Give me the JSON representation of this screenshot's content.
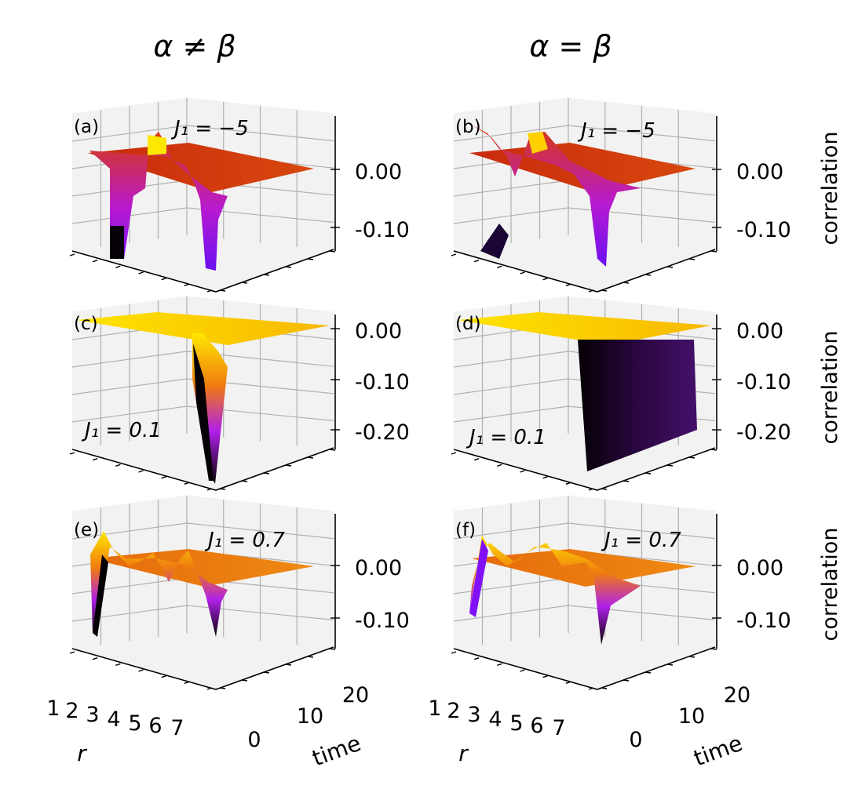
{
  "column_titles": [
    "α ≠ β",
    "α = β"
  ],
  "chart_data": [
    {
      "panel": "(a)",
      "type": "surface",
      "column": "α ≠ β",
      "annotation": "J₁ = −5",
      "zlabel": "",
      "zticks": [
        "0.00",
        "-0.10"
      ],
      "r": [
        1,
        2,
        3,
        4,
        5,
        6,
        7
      ],
      "time_range": [
        0,
        20
      ],
      "dips_at_r": [
        3,
        6
      ],
      "peak_at_r": 4.6,
      "min": -0.14,
      "max": 0.03
    },
    {
      "panel": "(b)",
      "type": "surface",
      "column": "α = β",
      "annotation": "J₁ = −5",
      "zlabel": "correlation",
      "zticks": [
        "0.00",
        "-0.10"
      ],
      "r": [
        1,
        2,
        3,
        4,
        5,
        6,
        7
      ],
      "time_range": [
        0,
        20
      ],
      "dips_at_r": [
        3,
        6
      ],
      "peak_at_r": 4.5,
      "min": -0.14,
      "max": 0.04
    },
    {
      "panel": "(c)",
      "type": "surface",
      "column": "α ≠ β",
      "annotation": "J₁ = 0.1",
      "zlabel": "",
      "zticks": [
        "0.00",
        "-0.10",
        "-0.20"
      ],
      "r": [
        1,
        2,
        3,
        4,
        5,
        6,
        7
      ],
      "time_range": [
        0,
        20
      ],
      "dips_at_r": [
        5
      ],
      "min": -0.28,
      "max": 0.01
    },
    {
      "panel": "(d)",
      "type": "surface",
      "column": "α = β",
      "annotation": "J₁ = 0.1",
      "zlabel": "correlation",
      "zticks": [
        "0.00",
        "-0.10",
        "-0.20"
      ],
      "r": [
        1,
        2,
        3,
        4,
        5,
        6,
        7
      ],
      "time_range": [
        0,
        20
      ],
      "dips_at_r": [
        5
      ],
      "min": -0.25,
      "max": 0.01
    },
    {
      "panel": "(e)",
      "type": "surface",
      "column": "α ≠ β",
      "annotation": "J₁ = 0.7",
      "zlabel": "",
      "zticks": [
        "0.00",
        "-0.10"
      ],
      "r": [
        1,
        2,
        3,
        4,
        5,
        6,
        7
      ],
      "time_range": [
        0,
        20
      ],
      "xlabel": "r",
      "ylabel": "time",
      "xticks": [
        "1",
        "2",
        "3",
        "4",
        "5",
        "6",
        "7"
      ],
      "yticks": [
        "0",
        "10",
        "20"
      ],
      "min": -0.15,
      "max": 0.04
    },
    {
      "panel": "(f)",
      "type": "surface",
      "column": "α = β",
      "annotation": "J₁ = 0.7",
      "zlabel": "correlation",
      "zticks": [
        "0.00",
        "-0.10"
      ],
      "r": [
        1,
        2,
        3,
        4,
        5,
        6,
        7
      ],
      "time_range": [
        0,
        20
      ],
      "xlabel": "r",
      "ylabel": "time",
      "xticks": [
        "1",
        "2",
        "3",
        "4",
        "5",
        "6",
        "7"
      ],
      "yticks": [
        "0",
        "10",
        "20"
      ],
      "min": -0.13,
      "max": 0.05
    }
  ]
}
